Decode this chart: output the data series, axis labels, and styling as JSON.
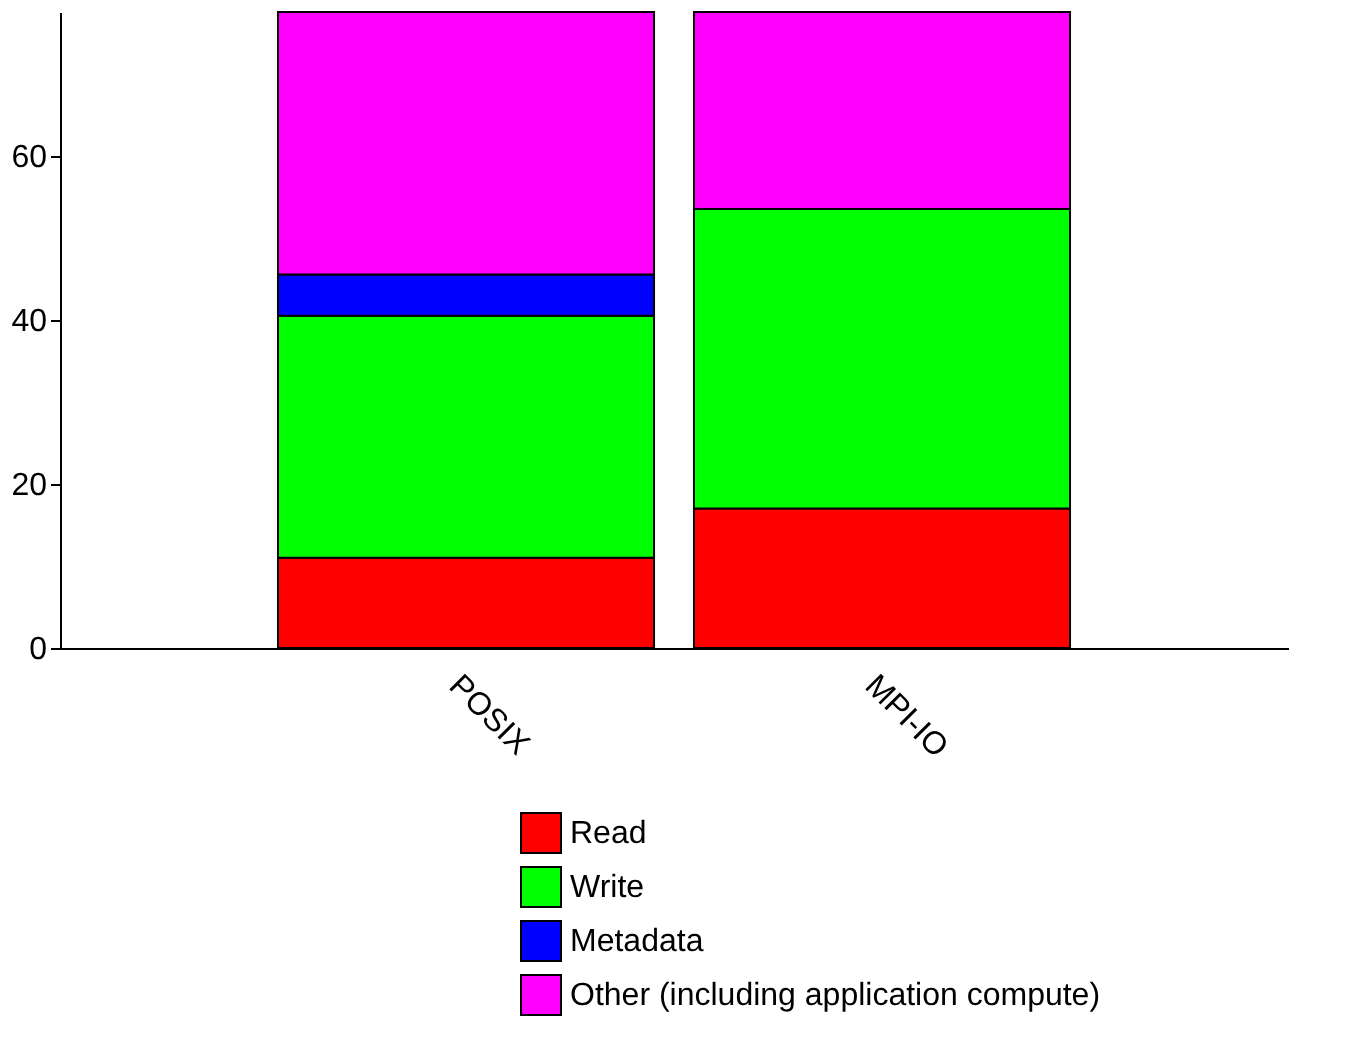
{
  "chart_data": {
    "type": "bar",
    "stacked": true,
    "categories": [
      "POSIX",
      "MPI-IO"
    ],
    "series": [
      {
        "name": "Read",
        "color": "#ff0000",
        "values": [
          11,
          17
        ]
      },
      {
        "name": "Write",
        "color": "#00ff00",
        "values": [
          29.5,
          36.5
        ]
      },
      {
        "name": "Metadata",
        "color": "#0000ff",
        "values": [
          5,
          0
        ]
      },
      {
        "name": "Other (including application compute)",
        "color": "#ff00ff",
        "values": [
          32,
          24
        ]
      }
    ],
    "ylim": [
      0,
      77.5
    ],
    "yticks": [
      0,
      20,
      40,
      60
    ],
    "grid": false,
    "legend": "bottom right"
  }
}
